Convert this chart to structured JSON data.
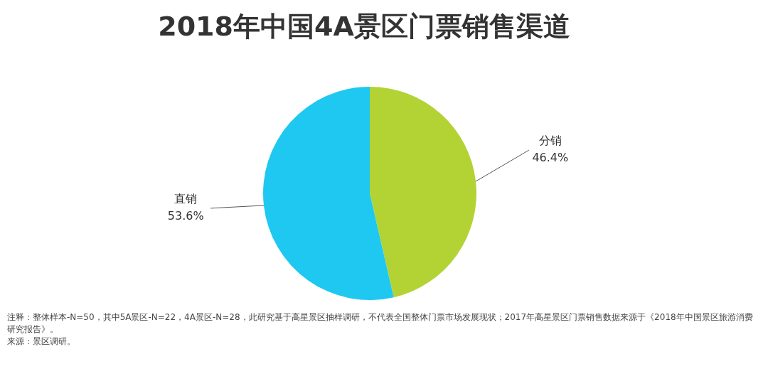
{
  "chart_data": {
    "type": "pie",
    "title": "2018年中国4A景区门票销售渠道",
    "categories": [
      "分销",
      "直销"
    ],
    "values": [
      46.4,
      53.6
    ],
    "colors": [
      "#b3d334",
      "#1ec8f0"
    ],
    "value_labels": [
      "46.4%",
      "53.6%"
    ],
    "annotations": [
      "注释：整体样本-N=50，其中5A景区-N=22，4A景区-N=28，此研究基于高星景区抽样调研，不代表全国整体门票市场发展现状；2017年高星景区门票销售数据来源于《2018年中国景区旅游消费研究报告》。",
      "来源：景区调研。"
    ]
  }
}
